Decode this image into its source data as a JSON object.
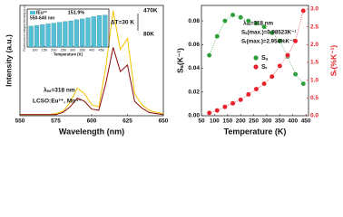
{
  "chart_data": [
    {
      "type": "line",
      "xlabel": "Wavelength (nm)",
      "ylabel": "Intensity (a.u.)",
      "x": [
        550,
        555,
        560,
        565,
        570,
        575,
        580,
        585,
        590,
        595,
        600,
        605,
        610,
        615,
        620,
        625,
        630,
        635,
        640,
        645,
        650
      ],
      "series": [
        {
          "name": "470K",
          "color": "#f2c200",
          "values": [
            0.01,
            0.01,
            0.01,
            0.01,
            0.01,
            0.02,
            0.04,
            0.12,
            0.25,
            0.2,
            0.1,
            0.08,
            0.45,
            0.95,
            0.6,
            0.7,
            0.2,
            0.1,
            0.05,
            0.03,
            0.02
          ]
        },
        {
          "name": "80K",
          "color": "#8b0a0a",
          "values": [
            0.01,
            0.01,
            0.01,
            0.01,
            0.01,
            0.01,
            0.03,
            0.08,
            0.16,
            0.13,
            0.06,
            0.05,
            0.3,
            0.62,
            0.4,
            0.46,
            0.13,
            0.07,
            0.03,
            0.02,
            0.01
          ]
        }
      ],
      "xlim": [
        550,
        650
      ],
      "xticks": [
        550,
        575,
        600,
        625,
        650
      ],
      "ylim": [
        0,
        1
      ],
      "annotations": [
        "ΔT=30 K",
        "λₑₓ=318 nm",
        "LCSO:Eu³⁺, Mn⁴⁺"
      ]
    },
    {
      "type": "bar",
      "xlabel": "Temperature (K)",
      "ylabel": "Fluorescence integral intensity (a.u.)",
      "x": [
        80,
        110,
        140,
        170,
        200,
        230,
        260,
        290,
        320,
        350,
        380,
        410,
        440,
        470
      ],
      "values": [
        0.55,
        0.57,
        0.59,
        0.61,
        0.63,
        0.65,
        0.67,
        0.69,
        0.72,
        0.74,
        0.77,
        0.8,
        0.83,
        0.84
      ],
      "color": "#56bfd6",
      "xlim": [
        60,
        490
      ],
      "xticks": [
        100,
        150,
        200,
        250,
        300,
        350,
        400,
        450
      ],
      "ylim": [
        0,
        1
      ],
      "legend": [
        "IEu³⁺",
        "550-640 nm"
      ],
      "annotation": "151.9%"
    },
    {
      "type": "scatter",
      "xlabel": "Temperature (K)",
      "ylabel": "Sₐ(K⁻¹)",
      "y2label": "Sᵣ(%K⁻¹)",
      "x": [
        80,
        110,
        140,
        170,
        200,
        230,
        260,
        290,
        320,
        350,
        380,
        410,
        440
      ],
      "series": [
        {
          "name": "Sₐ",
          "color": "#2e9e3a",
          "axis": "y",
          "values": [
            0.051,
            0.067,
            0.08,
            0.085,
            0.083,
            0.08,
            0.078,
            0.075,
            0.07,
            0.063,
            0.05,
            0.035,
            0.027
          ]
        },
        {
          "name": "Sᵣ",
          "color": "#e8202a",
          "axis": "y2",
          "values": [
            0.08,
            0.15,
            0.25,
            0.35,
            0.45,
            0.6,
            0.75,
            0.9,
            1.1,
            1.4,
            1.7,
            2.1,
            2.95
          ]
        }
      ],
      "xlim": [
        50,
        460
      ],
      "xticks": [
        50,
        100,
        150,
        200,
        250,
        300,
        350,
        400,
        450
      ],
      "ylim": [
        0,
        0.093
      ],
      "yticks": [
        {
          "value": 0,
          "label": "0.00"
        },
        {
          "value": 0.02,
          "label": "0.02"
        },
        {
          "value": 0.04,
          "label": "0.04"
        },
        {
          "value": 0.06,
          "label": "0.06"
        },
        {
          "value": 0.08,
          "label": "0.08"
        }
      ],
      "y2lim": [
        0,
        3.1
      ],
      "y2ticks": [
        {
          "value": 0,
          "label": "0.0"
        },
        {
          "value": 0.5,
          "label": "0.5"
        },
        {
          "value": 1,
          "label": "1.0"
        },
        {
          "value": 1.5,
          "label": "1.5"
        },
        {
          "value": 2,
          "label": "2.0"
        },
        {
          "value": 2.5,
          "label": "2.5"
        },
        {
          "value": 3,
          "label": "3.0"
        }
      ],
      "annotations": [
        "λₑₓ=318 nm",
        "Sₐ(max.)=0.08523K⁻¹",
        "Sᵣ(max.)=2.954%K⁻¹"
      ]
    }
  ]
}
